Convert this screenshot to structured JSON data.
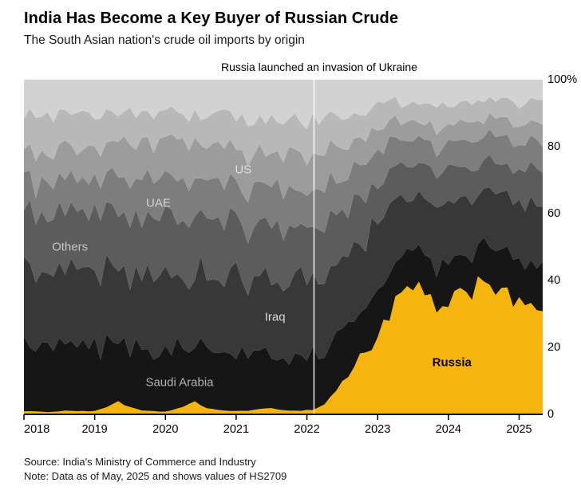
{
  "header": {
    "title": "India Has Become a Key Buyer of Russian Crude",
    "subtitle": "The South Asian nation's crude oil imports by origin"
  },
  "footer": {
    "source": "Source: India's Ministry of Commerce and Industry",
    "note": "Note: Data as of May, 2025 and shows values of HS2709"
  },
  "chart_data": {
    "type": "area",
    "stacking": "percent",
    "title": "India Has Become a Key Buyer of Russian Crude",
    "subtitle": "The South Asian nation's crude oil imports by origin",
    "x_range": [
      2018,
      2025.333
    ],
    "ylim": [
      0,
      100
    ],
    "grid": false,
    "legend_position": "labels-inside-areas",
    "x_ticks": [
      2018,
      2019,
      2020,
      2021,
      2022,
      2023,
      2024,
      2025
    ],
    "y_ticks": [
      0,
      20,
      40,
      60,
      80,
      100
    ],
    "y_tick_labels": [
      "0",
      "20",
      "40",
      "60",
      "80",
      "100%"
    ],
    "event_line": {
      "x": 2022.1,
      "label": "Russia launched an invasion of Ukraine",
      "color": "#ffffff"
    },
    "series": [
      {
        "id": "russia",
        "name": "Russia",
        "color": "#f5b40e",
        "jitter": 0.1,
        "label": {
          "text": "Russia",
          "x": 2024.05,
          "y": 15.5,
          "color": "#000000",
          "bold": true
        },
        "points": [
          [
            2018,
            1
          ],
          [
            2018.3,
            0.7
          ],
          [
            2018.6,
            1.1
          ],
          [
            2019,
            0.9
          ],
          [
            2019.2,
            2.5
          ],
          [
            2019.33,
            4
          ],
          [
            2019.5,
            2
          ],
          [
            2019.7,
            1
          ],
          [
            2020,
            0.8
          ],
          [
            2020.25,
            2.2
          ],
          [
            2020.42,
            3.6
          ],
          [
            2020.6,
            1.8
          ],
          [
            2020.9,
            0.9
          ],
          [
            2021.2,
            1.2
          ],
          [
            2021.5,
            1.8
          ],
          [
            2021.8,
            1
          ],
          [
            2022.1,
            1.4
          ],
          [
            2022.25,
            3
          ],
          [
            2022.4,
            7
          ],
          [
            2022.6,
            12
          ],
          [
            2022.75,
            17
          ],
          [
            2022.9,
            20
          ],
          [
            2023.1,
            28
          ],
          [
            2023.3,
            34
          ],
          [
            2023.45,
            38
          ],
          [
            2023.6,
            36
          ],
          [
            2023.8,
            33
          ],
          [
            2023.95,
            30
          ],
          [
            2024.1,
            34
          ],
          [
            2024.3,
            37
          ],
          [
            2024.5,
            42
          ],
          [
            2024.65,
            39
          ],
          [
            2024.8,
            35
          ],
          [
            2025,
            32
          ],
          [
            2025.15,
            36
          ],
          [
            2025.333,
            30
          ]
        ]
      },
      {
        "id": "saudi-arabia",
        "name": "Saudi Arabia",
        "color": "#161616",
        "jitter": 0.2,
        "label": {
          "text": "Saudi Arabia",
          "x": 2020.2,
          "y": 9.5,
          "color": "#b3b3b3",
          "bold": false
        },
        "points": [
          [
            2018,
            19
          ],
          [
            2019,
            18
          ],
          [
            2020,
            18
          ],
          [
            2021,
            16
          ],
          [
            2022,
            15
          ],
          [
            2022.6,
            13
          ],
          [
            2023,
            12
          ],
          [
            2024,
            11
          ],
          [
            2025.333,
            12
          ]
        ]
      },
      {
        "id": "iraq",
        "name": "Iraq",
        "color": "#383838",
        "jitter": 0.18,
        "label": {
          "text": "Iraq",
          "x": 2021.55,
          "y": 29,
          "color": "#d9d9d9",
          "bold": false
        },
        "points": [
          [
            2018,
            23
          ],
          [
            2019,
            22
          ],
          [
            2020,
            21
          ],
          [
            2021,
            22
          ],
          [
            2022,
            21
          ],
          [
            2022.6,
            18
          ],
          [
            2023,
            17
          ],
          [
            2024,
            16
          ],
          [
            2025.333,
            17
          ]
        ]
      },
      {
        "id": "others",
        "name": "Others",
        "color": "#5c5c5c",
        "jitter": 0.2,
        "label": {
          "text": "Others",
          "x": 2018.65,
          "y": 50,
          "color": "#c4c4c4",
          "bold": false
        },
        "points": [
          [
            2018,
            16
          ],
          [
            2019,
            17
          ],
          [
            2020,
            17
          ],
          [
            2021,
            16
          ],
          [
            2022,
            15
          ],
          [
            2022.6,
            12
          ],
          [
            2023,
            10
          ],
          [
            2024,
            9
          ],
          [
            2025.333,
            10
          ]
        ]
      },
      {
        "id": "uae",
        "name": "UAE",
        "color": "#7d7d7d",
        "jitter": 0.22,
        "label": {
          "text": "UAE",
          "x": 2019.9,
          "y": 63,
          "color": "#d2d2d2",
          "bold": false
        },
        "points": [
          [
            2018,
            10
          ],
          [
            2019,
            10
          ],
          [
            2020,
            11
          ],
          [
            2021,
            11
          ],
          [
            2022,
            10
          ],
          [
            2022.6,
            9
          ],
          [
            2023,
            8
          ],
          [
            2024,
            7
          ],
          [
            2025.333,
            8
          ]
        ]
      },
      {
        "id": "us",
        "name": "US",
        "color": "#9c9c9c",
        "jitter": 0.25,
        "label": {
          "text": "US",
          "x": 2021.1,
          "y": 73,
          "color": "#dedede",
          "bold": false
        },
        "points": [
          [
            2018,
            9
          ],
          [
            2019,
            10
          ],
          [
            2020,
            11
          ],
          [
            2021,
            10
          ],
          [
            2022,
            10
          ],
          [
            2022.6,
            8
          ],
          [
            2023,
            6
          ],
          [
            2024,
            5
          ],
          [
            2025.333,
            5
          ]
        ]
      },
      {
        "id": "unlabeled-band-1",
        "name": "(unlabeled band)",
        "color": "#b8b8b8",
        "jitter": 0.25,
        "label": null,
        "points": [
          [
            2018,
            11
          ],
          [
            2019,
            10
          ],
          [
            2020,
            9
          ],
          [
            2021,
            10
          ],
          [
            2022,
            10
          ],
          [
            2022.6,
            8
          ],
          [
            2023,
            6
          ],
          [
            2024,
            6
          ],
          [
            2025.333,
            6
          ]
        ]
      },
      {
        "id": "unlabeled-band-2",
        "name": "(unlabeled band)",
        "color": "#d2d2d2",
        "jitter": 0.25,
        "label": null,
        "points": [
          [
            2018,
            11
          ],
          [
            2019,
            11
          ],
          [
            2020,
            10
          ],
          [
            2021,
            11
          ],
          [
            2022,
            11
          ],
          [
            2022.6,
            9
          ],
          [
            2023,
            7
          ],
          [
            2024,
            7
          ],
          [
            2025.333,
            7
          ]
        ]
      }
    ]
  }
}
